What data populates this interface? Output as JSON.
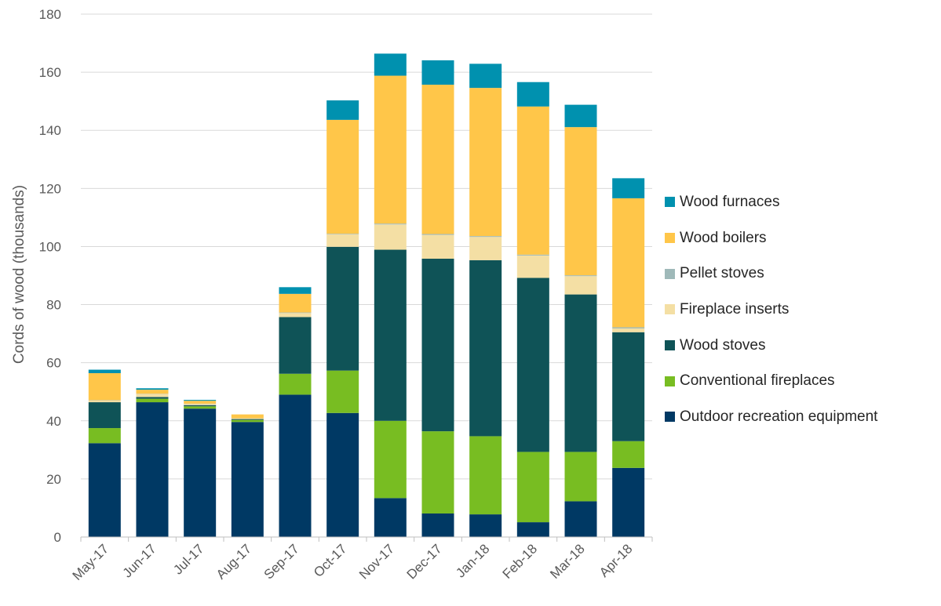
{
  "chart_data": {
    "type": "bar",
    "stacked": true,
    "ylabel": "Cords of wood (thousands)",
    "xlabel": "",
    "ylim": [
      0,
      180
    ],
    "yticks": [
      0,
      20,
      40,
      60,
      80,
      100,
      120,
      140,
      160,
      180
    ],
    "grid": "horizontal",
    "legend_position": "right",
    "categories": [
      "May-17",
      "Jun-17",
      "Jul-17",
      "Aug-17",
      "Sep-17",
      "Oct-17",
      "Nov-17",
      "Dec-17",
      "Jan-18",
      "Feb-18",
      "Mar-18",
      "Apr-18"
    ],
    "series": [
      {
        "name": "Outdoor recreation equipment",
        "color": "#003964",
        "values": [
          32.3,
          46.4,
          44.2,
          39.6,
          49.0,
          42.7,
          13.4,
          8.1,
          7.8,
          5.1,
          12.3,
          23.8
        ]
      },
      {
        "name": "Conventional fireplaces",
        "color": "#78BD22",
        "values": [
          5.2,
          1.2,
          0.8,
          0.7,
          7.2,
          14.6,
          26.6,
          28.3,
          26.9,
          24.2,
          17.0,
          9.2
        ]
      },
      {
        "name": "Wood stoves",
        "color": "#0F5357",
        "values": [
          8.9,
          0.6,
          0.4,
          0.3,
          19.5,
          42.6,
          58.9,
          59.4,
          60.6,
          59.9,
          54.2,
          37.5
        ]
      },
      {
        "name": "Fireplace inserts",
        "color": "#F4DFA4",
        "values": [
          0.6,
          1.0,
          0.4,
          0.3,
          1.4,
          4.3,
          8.7,
          8.2,
          8.0,
          7.7,
          6.3,
          1.3
        ]
      },
      {
        "name": "Pellet stoves",
        "color": "#9FB9B9",
        "values": [
          0.1,
          0.1,
          0.1,
          0.0,
          0.2,
          0.2,
          0.3,
          0.3,
          0.3,
          0.3,
          0.3,
          0.4
        ]
      },
      {
        "name": "Wood boilers",
        "color": "#FFC649",
        "values": [
          9.3,
          1.4,
          1.0,
          1.3,
          6.4,
          39.2,
          50.9,
          51.4,
          51.0,
          51.0,
          51.0,
          44.4
        ]
      },
      {
        "name": "Wood furnaces",
        "color": "#0091AF",
        "values": [
          1.2,
          0.5,
          0.3,
          0.0,
          2.3,
          6.7,
          7.6,
          8.4,
          8.3,
          8.4,
          7.7,
          6.9
        ]
      }
    ]
  }
}
